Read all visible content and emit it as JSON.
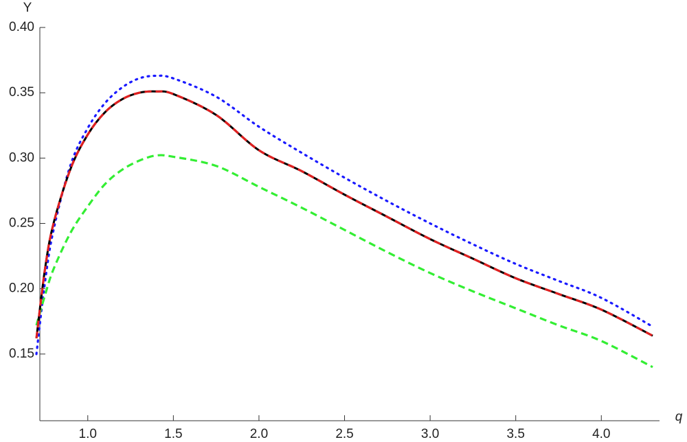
{
  "chart_data": {
    "type": "line",
    "x_label": "q",
    "y_label": "Y",
    "x": [
      0.7,
      0.75,
      0.8,
      0.9,
      1.0,
      1.1,
      1.2,
      1.3,
      1.4,
      1.5,
      1.75,
      2.0,
      2.25,
      2.5,
      2.75,
      3.0,
      3.25,
      3.5,
      3.75,
      4.0,
      4.3
    ],
    "series": [
      {
        "color": "#1a1aff",
        "style": "dotted",
        "values": [
          0.15,
          0.205,
          0.245,
          0.295,
          0.323,
          0.342,
          0.354,
          0.361,
          0.363,
          0.361,
          0.347,
          0.324,
          0.304,
          0.285,
          0.267,
          0.25,
          0.234,
          0.219,
          0.206,
          0.193,
          0.171
        ]
      },
      {
        "color": "#33ee33",
        "style": "dashed",
        "values": [
          0.172,
          0.195,
          0.215,
          0.243,
          0.263,
          0.28,
          0.291,
          0.298,
          0.302,
          0.301,
          0.294,
          0.278,
          0.262,
          0.245,
          0.228,
          0.212,
          0.198,
          0.185,
          0.172,
          0.16,
          0.14
        ]
      },
      {
        "color": "#000000",
        "style": "solid",
        "values": [
          0.162,
          0.215,
          0.25,
          0.292,
          0.318,
          0.335,
          0.345,
          0.35,
          0.351,
          0.349,
          0.333,
          0.306,
          0.29,
          0.272,
          0.255,
          0.238,
          0.223,
          0.208,
          0.196,
          0.184,
          0.164
        ]
      },
      {
        "color": "#e02020",
        "style": "dashed",
        "values": [
          0.162,
          0.215,
          0.25,
          0.292,
          0.318,
          0.335,
          0.345,
          0.35,
          0.351,
          0.349,
          0.333,
          0.306,
          0.29,
          0.272,
          0.255,
          0.238,
          0.223,
          0.208,
          0.196,
          0.184,
          0.164
        ]
      }
    ],
    "xlim": [
      0.72,
      4.34
    ],
    "ylim": [
      0.1,
      0.4
    ],
    "xticks": [
      {
        "value": 1.0,
        "label": "1.0"
      },
      1.5,
      {
        "value": 2.0,
        "label": "2.0"
      },
      2.5,
      {
        "value": 3.0,
        "label": "3.0"
      },
      3.5,
      {
        "value": 4.0,
        "label": "4.0"
      }
    ],
    "yticks": [
      0.15,
      {
        "value": 0.2,
        "label": "0.20"
      },
      0.25,
      {
        "value": 0.3,
        "label": "0.30"
      },
      0.35,
      {
        "value": 0.4,
        "label": "0.40"
      }
    ],
    "grid": false
  }
}
